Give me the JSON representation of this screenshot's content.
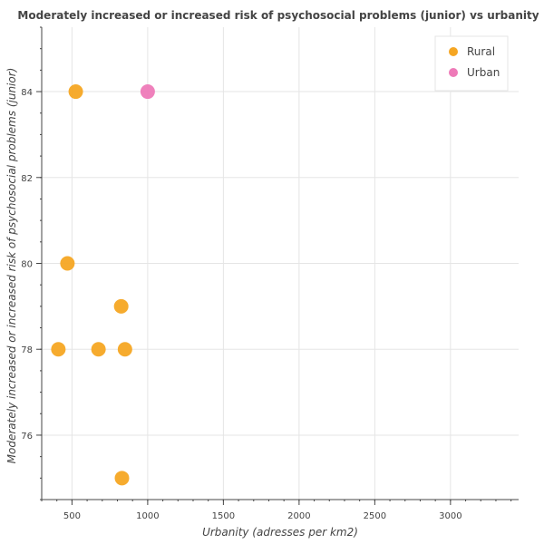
{
  "chart_data": {
    "type": "scatter",
    "title": "Moderately increased or increased risk of psychosocial problems (junior) vs urbanity",
    "xlabel": "Urbanity (adresses per km2)",
    "ylabel": "Moderately increased or increased risk of psychosocial problems (junior)",
    "xlim": [
      300,
      3450
    ],
    "ylim": [
      74.5,
      85.5
    ],
    "x_ticks": [
      500,
      1000,
      1500,
      2000,
      2500,
      3000
    ],
    "y_ticks": [
      76,
      78,
      80,
      82,
      84
    ],
    "grid": true,
    "legend_position": "top-right",
    "series": [
      {
        "name": "Rural",
        "color": "#f5a623",
        "points": [
          {
            "x": 525,
            "y": 84
          },
          {
            "x": 470,
            "y": 80
          },
          {
            "x": 825,
            "y": 79
          },
          {
            "x": 410,
            "y": 78
          },
          {
            "x": 675,
            "y": 78
          },
          {
            "x": 850,
            "y": 78
          },
          {
            "x": 830,
            "y": 75
          }
        ]
      },
      {
        "name": "Urban",
        "color": "#ee7ab8",
        "points": [
          {
            "x": 1000,
            "y": 84
          }
        ]
      }
    ]
  }
}
